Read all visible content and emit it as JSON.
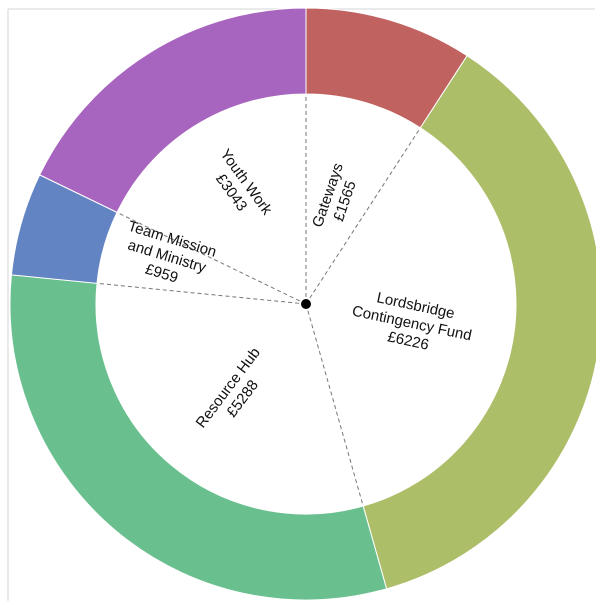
{
  "chart_data": {
    "type": "pie",
    "style": "donut",
    "slices": [
      {
        "lines": [
          "Gateways",
          "£1565"
        ],
        "value": 1565,
        "color": "#c0625f"
      },
      {
        "lines": [
          "Lordsbridge",
          "Contingency Fund",
          "£6226"
        ],
        "value": 6226,
        "color": "#adbe69"
      },
      {
        "lines": [
          "Resource Hub",
          "£5288"
        ],
        "value": 5288,
        "color": "#69c08e"
      },
      {
        "lines": [
          "Team Mission",
          "and Ministry",
          "£959"
        ],
        "value": 959,
        "color": "#6384c2"
      },
      {
        "lines": [
          "Youth Work",
          "£3043"
        ],
        "value": 3043,
        "color": "#a865c0"
      }
    ],
    "start": "top",
    "direction": "clockwise",
    "dashed_leader_lines": true,
    "center_dot": true,
    "legend": "none"
  }
}
